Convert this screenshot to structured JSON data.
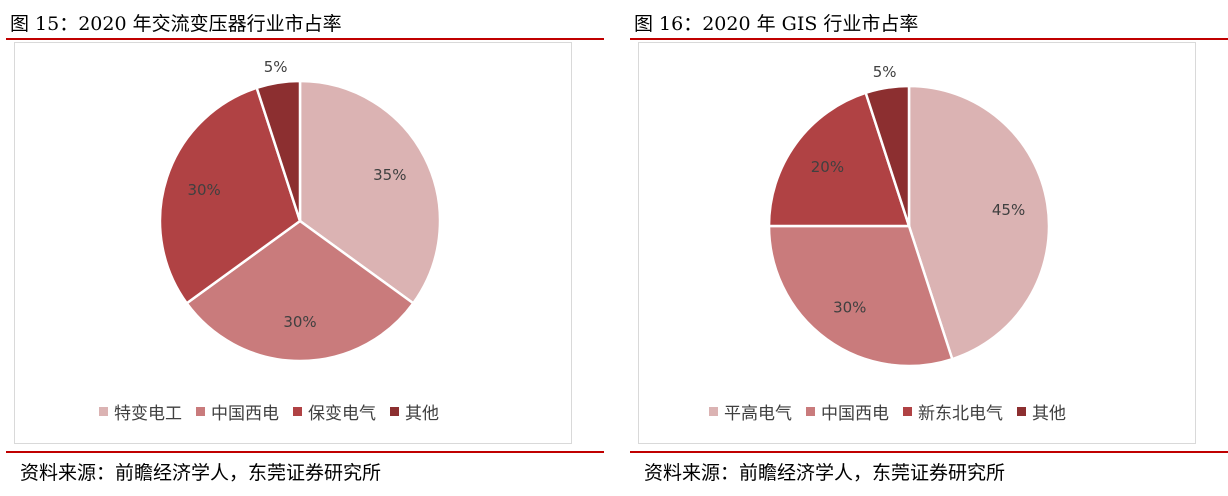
{
  "colors": {
    "accent_rule": "#c00000",
    "slice_1": "#dbb3b3",
    "slice_2": "#c97b7c",
    "slice_3": "#b04244",
    "slice_4": "#8c2f30"
  },
  "left": {
    "title": "图 15：2020 年交流变压器行业市占率",
    "source": "资料来源：前瞻经济学人，东莞证券研究所"
  },
  "right": {
    "title": "图 16：2020 年 GIS 行业市占率",
    "source": "资料来源：前瞻经济学人，东莞证券研究所"
  },
  "chart_data": [
    {
      "type": "pie",
      "categories": [
        "特变电工",
        "中国西电",
        "保变电气",
        "其他"
      ],
      "values": [
        35,
        30,
        30,
        5
      ],
      "labels": [
        "35%",
        "30%",
        "30%",
        "5%"
      ],
      "legend": "bottom"
    },
    {
      "type": "pie",
      "categories": [
        "平高电气",
        "中国西电",
        "新东北电气",
        "其他"
      ],
      "values": [
        45,
        30,
        20,
        5
      ],
      "labels": [
        "45%",
        "30%",
        "20%",
        "5%"
      ],
      "legend": "bottom"
    }
  ]
}
